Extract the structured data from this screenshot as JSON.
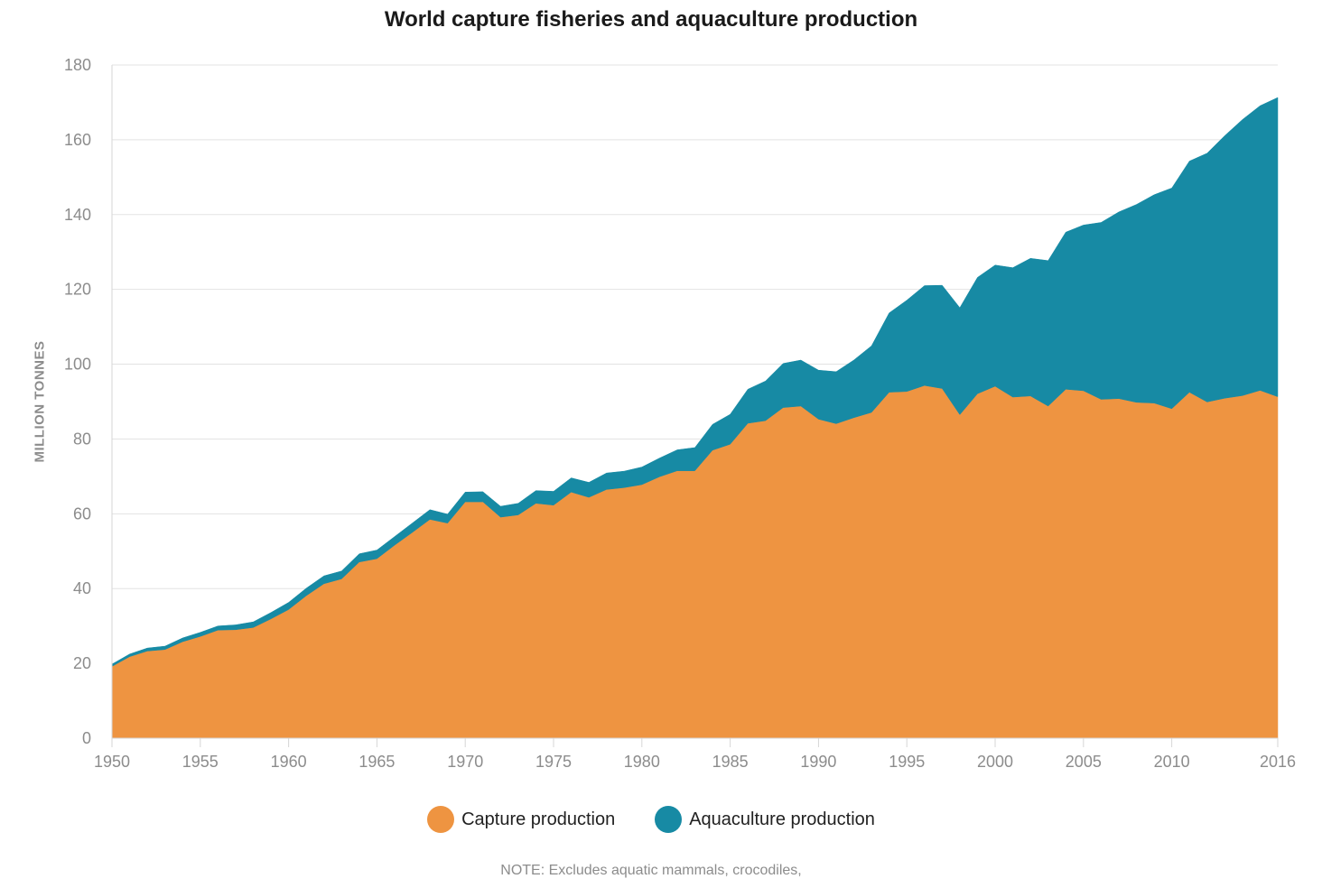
{
  "chart_data": {
    "type": "area",
    "stacked": true,
    "title": "World capture fisheries and aquaculture production",
    "ylabel": "MILLION TONNES",
    "xlabel": "",
    "ylim": [
      0,
      180
    ],
    "xlim": [
      1950,
      2016
    ],
    "y_ticks": [
      0,
      20,
      40,
      60,
      80,
      100,
      120,
      140,
      160,
      180
    ],
    "x_ticks": [
      1950,
      1955,
      1960,
      1965,
      1970,
      1975,
      1980,
      1985,
      1990,
      1995,
      2000,
      2005,
      2010,
      2016
    ],
    "grid": "horizontal",
    "legend_position": "bottom",
    "x": [
      1950,
      1951,
      1952,
      1953,
      1954,
      1955,
      1956,
      1957,
      1958,
      1959,
      1960,
      1961,
      1962,
      1963,
      1964,
      1965,
      1966,
      1967,
      1968,
      1969,
      1970,
      1971,
      1972,
      1973,
      1974,
      1975,
      1976,
      1977,
      1978,
      1979,
      1980,
      1981,
      1982,
      1983,
      1984,
      1985,
      1986,
      1987,
      1988,
      1989,
      1990,
      1991,
      1992,
      1993,
      1994,
      1995,
      1996,
      1997,
      1998,
      1999,
      2000,
      2001,
      2002,
      2003,
      2004,
      2005,
      2006,
      2007,
      2008,
      2009,
      2010,
      2011,
      2012,
      2013,
      2014,
      2015,
      2016
    ],
    "series": [
      {
        "name": "Capture production",
        "color": "#ee9441",
        "values": [
          19.2,
          21.8,
          23.3,
          23.7,
          25.8,
          27.2,
          28.9,
          29.0,
          29.6,
          31.9,
          34.4,
          38.1,
          41.3,
          42.6,
          47.1,
          48.0,
          51.6,
          55.0,
          58.5,
          57.5,
          63.2,
          63.2,
          59.1,
          59.7,
          62.8,
          62.3,
          65.8,
          64.4,
          66.5,
          67.0,
          67.8,
          69.9,
          71.5,
          71.5,
          77.0,
          78.6,
          84.2,
          84.9,
          88.4,
          88.8,
          85.3,
          84.1,
          85.7,
          87.1,
          92.5,
          92.7,
          94.3,
          93.5,
          86.5,
          92.1,
          94.1,
          91.2,
          91.5,
          88.8,
          93.3,
          92.9,
          90.6,
          90.8,
          89.8,
          89.6,
          88.1,
          92.5,
          89.9,
          90.9,
          91.6,
          93.0,
          91.3
        ]
      },
      {
        "name": "Aquaculture production",
        "color": "#178aa4",
        "values": [
          0.6,
          0.7,
          0.8,
          0.9,
          1.0,
          1.1,
          1.1,
          1.3,
          1.5,
          1.7,
          1.9,
          2.0,
          2.1,
          2.1,
          2.2,
          2.3,
          2.3,
          2.5,
          2.6,
          2.4,
          2.6,
          2.7,
          2.9,
          3.1,
          3.4,
          3.7,
          3.8,
          4.0,
          4.4,
          4.4,
          4.7,
          5.0,
          5.6,
          6.2,
          6.9,
          8.0,
          9.1,
          10.6,
          11.8,
          12.3,
          13.1,
          13.9,
          15.4,
          17.8,
          21.2,
          24.4,
          26.7,
          27.6,
          28.6,
          31.1,
          32.4,
          34.6,
          36.8,
          38.9,
          42.0,
          44.3,
          47.3,
          49.9,
          52.9,
          55.7,
          59.0,
          61.8,
          66.5,
          70.2,
          73.8,
          76.1,
          80.0
        ]
      }
    ]
  },
  "note": "NOTE: Excludes aquatic mammals, crocodiles,"
}
